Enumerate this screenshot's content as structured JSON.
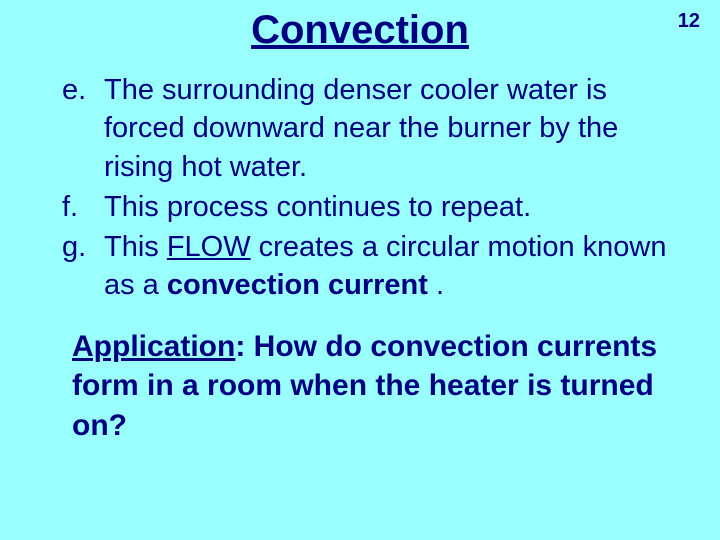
{
  "title": "Convection",
  "page_number": "12",
  "background_color": "#99ffff",
  "text_color": "#000080",
  "font_family": "Comic Sans MS",
  "title_fontsize": 40,
  "body_fontsize": 29,
  "application_fontsize": 30,
  "items": [
    {
      "marker": "e.",
      "text_before": "The surrounding denser cooler water is forced downward near the burner by the rising hot water."
    },
    {
      "marker": "f.",
      "text_before": "This process continues to repeat."
    },
    {
      "marker": "g.",
      "prefix": "This ",
      "flow_word": "FLOW",
      "mid": " creates a circular motion known as a ",
      "bold_term": "convection  current",
      "suffix": " ."
    }
  ],
  "application": {
    "label": "Application",
    "colon": ":",
    "question": "  How do convection currents form in a room when the heater is turned on?"
  }
}
